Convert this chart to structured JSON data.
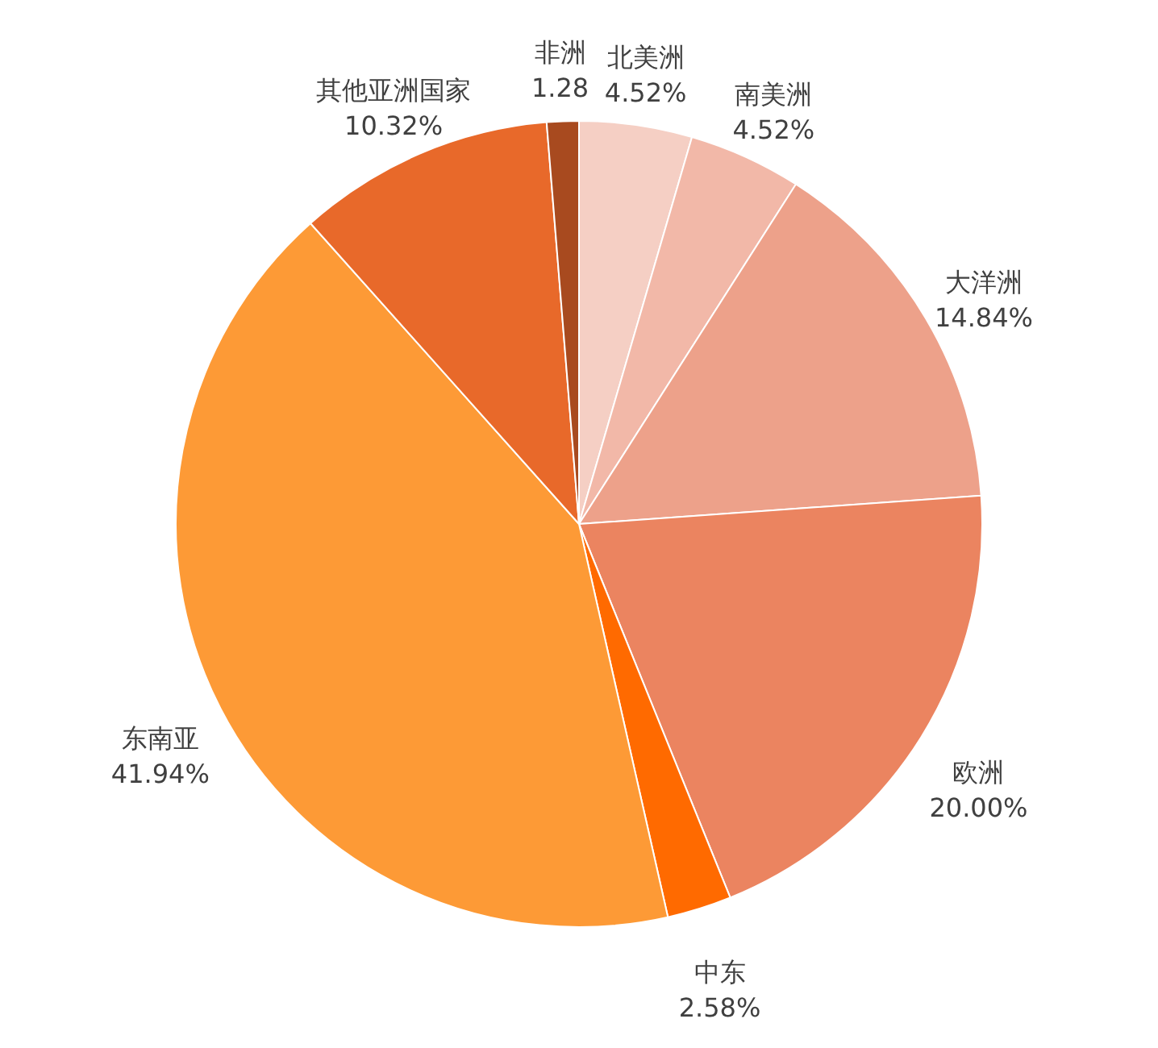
{
  "chart_data": {
    "type": "pie",
    "categories": [
      "北美洲",
      "南美洲",
      "大洋洲",
      "欧洲",
      "中东",
      "东南亚",
      "其他亚洲国家",
      "非洲"
    ],
    "values": [
      4.52,
      4.52,
      14.84,
      20.0,
      2.58,
      41.94,
      10.32,
      1.28
    ],
    "value_labels": [
      "4.52%",
      "4.52%",
      "14.84%",
      "20.00%",
      "2.58%",
      "41.94%",
      "10.32%",
      "1.28"
    ],
    "colors": [
      "#f5cfc4",
      "#f2b8a8",
      "#eda18a",
      "#eb8460",
      "#ff6a00",
      "#fd9a36",
      "#e8692a",
      "#a84a1f"
    ]
  }
}
